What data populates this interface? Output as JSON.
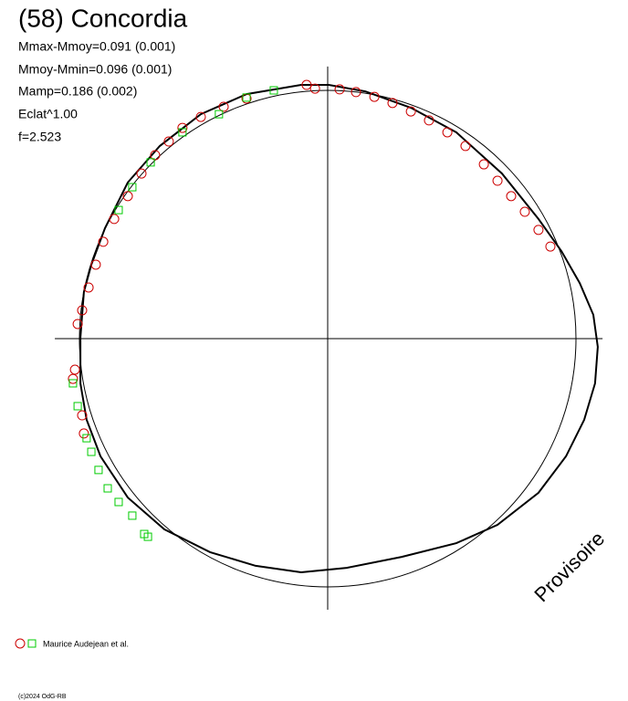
{
  "chart_data": {
    "type": "polar-lightcurve",
    "title": "(58) Concordia",
    "stats": [
      "Mmax-Mmoy=0.091 (0.001)",
      "Mmoy-Mmin=0.096 (0.001)",
      "Mamp=0.186 (0.002)",
      "Eclat^1.00",
      "f=2.523"
    ],
    "legend": "Maurice Audejean et al.",
    "watermark": "Provisoire",
    "copyright": "(c)2024 OdG-RB",
    "xlim": [
      -1.099,
      1.107
    ],
    "ylim": [
      -1.092,
      1.096
    ],
    "model": {
      "color": "#000000",
      "x": [
        -0.996,
        -0.982,
        -0.952,
        -0.897,
        -0.805,
        -0.676,
        -0.511,
        -0.327,
        -0.107,
        0.004,
        0.151,
        0.335,
        0.518,
        0.702,
        0.849,
        0.941,
        1.015,
        1.07,
        1.088,
        1.077,
        1.033,
        0.96,
        0.849,
        0.684,
        0.518,
        0.298,
        0.077,
        -0.107,
        -0.29,
        -0.474,
        -0.658,
        -0.805,
        -0.915,
        -0.971,
        -0.996
      ],
      "y": [
        0.004,
        0.188,
        0.298,
        0.445,
        0.629,
        0.776,
        0.904,
        0.985,
        1.022,
        1.022,
        0.996,
        0.93,
        0.831,
        0.665,
        0.482,
        0.353,
        0.224,
        0.096,
        -0.033,
        -0.18,
        -0.327,
        -0.474,
        -0.621,
        -0.75,
        -0.824,
        -0.879,
        -0.923,
        -0.941,
        -0.915,
        -0.86,
        -0.768,
        -0.64,
        -0.474,
        -0.327,
        -0.18
      ]
    },
    "series": [
      {
        "marker": "circle",
        "color": "#cc0000",
        "x": [
          -1.018,
          -1.026,
          -1.007,
          -0.989,
          -0.963,
          -0.934,
          -0.904,
          -0.86,
          -0.805,
          -0.75,
          -0.695,
          -0.64,
          -0.585,
          -0.511,
          -0.419,
          -0.327,
          -0.085,
          -0.051,
          0.048,
          0.114,
          0.188,
          0.261,
          0.335,
          0.408,
          0.482,
          0.555,
          0.629,
          0.684,
          0.739,
          0.794,
          0.849,
          0.897,
          -0.989,
          -0.982
        ],
        "y": [
          -0.125,
          -0.162,
          0.059,
          0.114,
          0.206,
          0.298,
          0.39,
          0.482,
          0.574,
          0.665,
          0.739,
          0.794,
          0.849,
          0.893,
          0.934,
          0.967,
          1.022,
          1.007,
          1.004,
          0.993,
          0.974,
          0.949,
          0.915,
          0.879,
          0.831,
          0.776,
          0.702,
          0.636,
          0.574,
          0.511,
          0.438,
          0.371,
          -0.309,
          -0.382
        ]
      },
      {
        "marker": "square",
        "color": "#00cc00",
        "x": [
          -1.026,
          -1.007,
          -0.971,
          -0.952,
          -0.923,
          -0.886,
          -0.842,
          -0.787,
          -0.739,
          -0.724,
          -0.842,
          -0.787,
          -0.713,
          -0.585,
          -0.438,
          -0.327,
          -0.217
        ],
        "y": [
          -0.18,
          -0.272,
          -0.401,
          -0.456,
          -0.529,
          -0.603,
          -0.658,
          -0.713,
          -0.787,
          -0.798,
          0.518,
          0.61,
          0.71,
          0.831,
          0.904,
          0.971,
          1.0
        ]
      }
    ]
  }
}
